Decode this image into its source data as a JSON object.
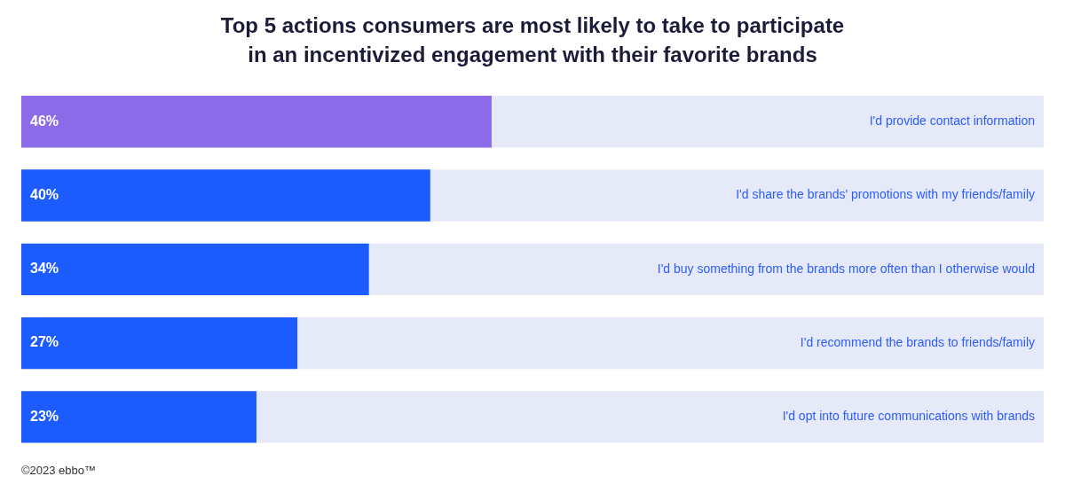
{
  "chart_data": {
    "type": "bar",
    "orientation": "horizontal",
    "title": "Top 5 actions consumers are most likely to take to participate",
    "subtitle": "in an incentivized engagement with their favorite brands",
    "categories": [
      "I'd provide contact information",
      "I'd share the brands' promotions with my friends/family",
      "I'd buy something from the brands more often than I otherwise would",
      "I'd recommend the brands to friends/family",
      "I'd opt into future communications with brands"
    ],
    "values": [
      46,
      40,
      34,
      27,
      23
    ],
    "value_labels": [
      "46%",
      "40%",
      "34%",
      "27%",
      "23%"
    ],
    "data_labels": true,
    "colors": [
      "#8b6be8",
      "#1c5cff",
      "#1c5cff",
      "#1c5cff",
      "#1c5cff"
    ],
    "xlim": [
      0,
      100
    ],
    "grid": false,
    "tick_labels": false,
    "annotations": [
      "©2023 ebbo™"
    ]
  }
}
